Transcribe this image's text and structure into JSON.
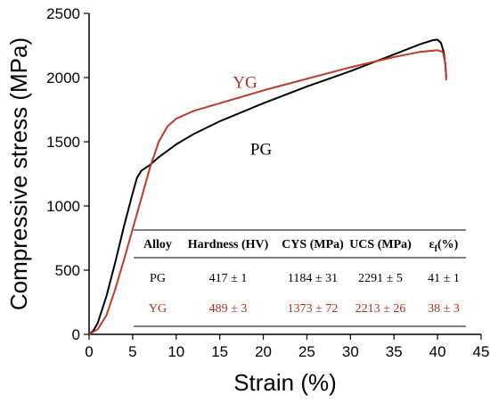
{
  "chart_data": {
    "type": "line",
    "xlabel": "Strain (%)",
    "ylabel": "Compressive stress (MPa)",
    "xlim": [
      0,
      45
    ],
    "ylim": [
      0,
      2500
    ],
    "xticks": [
      0,
      5,
      10,
      15,
      20,
      25,
      30,
      35,
      40,
      45
    ],
    "yticks": [
      0,
      500,
      1000,
      1500,
      2000,
      2500
    ],
    "grid": false,
    "series": [
      {
        "name": "PG",
        "color": "#000000",
        "points": [
          [
            0,
            0
          ],
          [
            0.5,
            30
          ],
          [
            1,
            90
          ],
          [
            2,
            300
          ],
          [
            3,
            560
          ],
          [
            4,
            840
          ],
          [
            5,
            1100
          ],
          [
            5.5,
            1220
          ],
          [
            6,
            1275
          ],
          [
            7,
            1320
          ],
          [
            8,
            1380
          ],
          [
            10,
            1480
          ],
          [
            12,
            1560
          ],
          [
            15,
            1660
          ],
          [
            20,
            1800
          ],
          [
            25,
            1930
          ],
          [
            30,
            2050
          ],
          [
            35,
            2180
          ],
          [
            38,
            2260
          ],
          [
            39.5,
            2292
          ],
          [
            40,
            2295
          ],
          [
            40.4,
            2270
          ],
          [
            40.7,
            2200
          ],
          [
            40.9,
            2100
          ],
          [
            41,
            2000
          ]
        ]
      },
      {
        "name": "YG",
        "color": "#c0392b",
        "points": [
          [
            0,
            0
          ],
          [
            1,
            40
          ],
          [
            2,
            150
          ],
          [
            3,
            350
          ],
          [
            4,
            580
          ],
          [
            5,
            820
          ],
          [
            6,
            1060
          ],
          [
            7,
            1300
          ],
          [
            8,
            1500
          ],
          [
            9,
            1620
          ],
          [
            10,
            1680
          ],
          [
            12,
            1740
          ],
          [
            15,
            1800
          ],
          [
            20,
            1900
          ],
          [
            25,
            1990
          ],
          [
            30,
            2080
          ],
          [
            35,
            2160
          ],
          [
            38,
            2200
          ],
          [
            40,
            2213
          ],
          [
            40.6,
            2200
          ],
          [
            40.9,
            2110
          ],
          [
            41,
            1980
          ]
        ]
      }
    ],
    "annotations": [
      {
        "text": "YG",
        "x": 16.5,
        "y": 1920,
        "color": "#a93226"
      },
      {
        "text": "PG",
        "x": 18.5,
        "y": 1400,
        "color": "#000000"
      }
    ],
    "table": {
      "headers": [
        "Alloy",
        "Hardness (HV)",
        "CYS (MPa)",
        "UCS (MPa)",
        "ε"
      ],
      "strain_header_sub": "f",
      "strain_header_suffix": "(%)",
      "rows": [
        {
          "alloy": "PG",
          "hardness": "417 ± 1",
          "cys": "1184 ± 31",
          "ucs": "2291 ± 5",
          "ef": "41 ± 1",
          "color": "#000000"
        },
        {
          "alloy": "YG",
          "hardness": "489 ± 3",
          "cys": "1373 ± 72",
          "ucs": "2213 ± 26",
          "ef": "38 ± 3",
          "color": "#a93226"
        }
      ]
    }
  }
}
